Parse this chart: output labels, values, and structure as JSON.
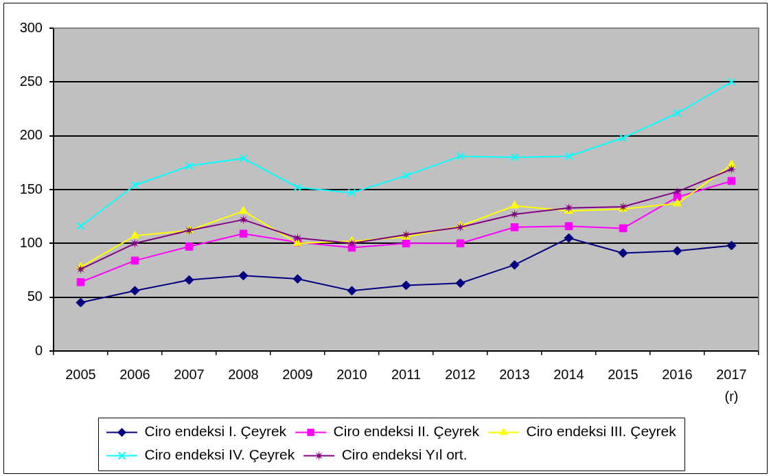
{
  "chart_data": {
    "type": "line",
    "categories": [
      "2005",
      "2006",
      "2007",
      "2008",
      "2009",
      "2010",
      "2011",
      "2012",
      "2013",
      "2014",
      "2015",
      "2016",
      "2017\n(r)"
    ],
    "series": [
      {
        "name": "Ciro endeksi I. Çeyrek",
        "color": "#000080",
        "marker": "diamond",
        "values": [
          45,
          56,
          66,
          70,
          67,
          56,
          61,
          63,
          80,
          105,
          91,
          93,
          98
        ]
      },
      {
        "name": "Ciro endeksi II. Çeyrek",
        "color": "#ff00ff",
        "marker": "square",
        "values": [
          64,
          84,
          97,
          109,
          101,
          96,
          100,
          100,
          115,
          116,
          114,
          143,
          158
        ]
      },
      {
        "name": "Ciro endeksi III. Çeyrek",
        "color": "#ffff00",
        "marker": "triangle",
        "values": [
          78,
          107,
          112,
          130,
          100,
          102,
          106,
          116,
          135,
          130,
          132,
          137,
          173
        ]
      },
      {
        "name": "Ciro endeksi IV. Çeyrek",
        "color": "#00ffff",
        "marker": "cross",
        "values": [
          116,
          154,
          172,
          179,
          152,
          147,
          163,
          181,
          180,
          181,
          198,
          221,
          250
        ]
      },
      {
        "name": "Ciro endeksi Yıl ort.",
        "color": "#800080",
        "marker": "star",
        "values": [
          76,
          100,
          112,
          122,
          105,
          100,
          108,
          115,
          127,
          133,
          134,
          148,
          169
        ]
      }
    ],
    "ylim": [
      0,
      300
    ],
    "yticks": [
      0,
      50,
      100,
      150,
      200,
      250,
      300
    ],
    "grid": "y",
    "legend": "bottom"
  }
}
